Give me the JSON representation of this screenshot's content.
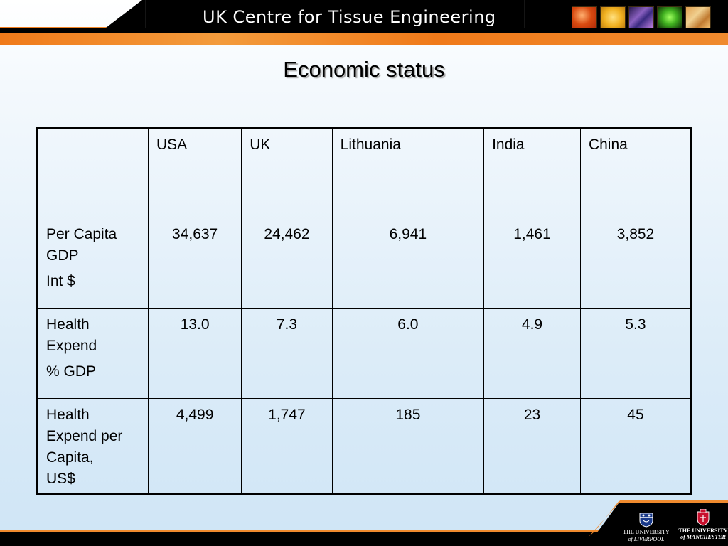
{
  "header": {
    "title": "UK Centre for Tissue Engineering",
    "thumbnails": [
      "tissue-image-orange",
      "tissue-image-yellow",
      "tissue-image-purple",
      "tissue-image-green",
      "tissue-image-amber"
    ]
  },
  "slide": {
    "title": "Economic status"
  },
  "table": {
    "columns": [
      "",
      "USA",
      "UK",
      "Lithuania",
      "India",
      "China"
    ],
    "rows": [
      {
        "label_lines": [
          "Per Capita",
          "GDP"
        ],
        "label_sub": "Int $",
        "values": [
          "34,637",
          "24,462",
          "6,941",
          "1,461",
          "3,852"
        ]
      },
      {
        "label_lines": [
          "Health",
          "Expend"
        ],
        "label_sub": "% GDP",
        "values": [
          "13.0",
          "7.3",
          "6.0",
          "4.9",
          "5.3"
        ]
      },
      {
        "label_lines": [
          "Health",
          "Expend per",
          "Capita,",
          "US$"
        ],
        "label_sub": "",
        "values": [
          "4,499",
          "1,747",
          "185",
          "23",
          "45"
        ]
      }
    ]
  },
  "footer": {
    "liverpool": [
      "THE UNIVERSITY",
      "of LIVERPOOL"
    ],
    "manchester": [
      "THE UNIVERSITY",
      "of MANCHESTER"
    ]
  },
  "colors": {
    "accent_orange": "#f07a1a",
    "header_black": "#000000",
    "background_light_blue": "#dcecf8"
  }
}
